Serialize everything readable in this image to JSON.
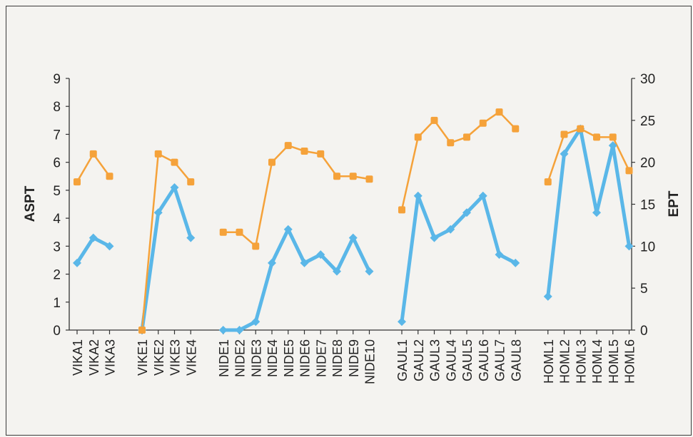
{
  "chart_data": {
    "type": "line",
    "ylabel_left": "ASPT",
    "ylabel_right": "EPT",
    "ylim_left": [
      0,
      9
    ],
    "ylim_right": [
      0,
      30
    ],
    "yticks_left": [
      "0",
      "1",
      "2",
      "3",
      "4",
      "5",
      "6",
      "7",
      "8",
      "9"
    ],
    "yticks_right": [
      "0",
      "5",
      "10",
      "15",
      "20",
      "25",
      "30"
    ],
    "grid": false,
    "colors": {
      "ASPT": "#f5a23a",
      "EPT": "#5ab7e8"
    },
    "groups": [
      {
        "categories": [
          "VIKA1",
          "VIKA2",
          "VIKA3"
        ],
        "ASPT": [
          5.3,
          6.3,
          5.5
        ],
        "EPT": [
          8,
          11,
          10
        ]
      },
      {
        "categories": [
          "VIKE1",
          "VIKE2",
          "VIKE3",
          "VIKE4"
        ],
        "ASPT": [
          0,
          6.3,
          6.0,
          5.3
        ],
        "EPT": [
          0,
          14,
          17,
          11
        ]
      },
      {
        "categories": [
          "NIDE1",
          "NIDE2",
          "NIDE3",
          "NIDE4",
          "NIDE5",
          "NIDE6",
          "NIDE7",
          "NIDE8",
          "NIDE9",
          "NIDE10"
        ],
        "ASPT": [
          3.5,
          3.5,
          3.0,
          6.0,
          6.6,
          6.4,
          6.3,
          5.5,
          5.5,
          5.4
        ],
        "EPT": [
          0,
          0,
          1,
          8,
          12,
          8,
          9,
          7,
          11,
          7
        ]
      },
      {
        "categories": [
          "GAUL1",
          "GAUL2",
          "GAUL3",
          "GAUL4",
          "GAUL5",
          "GAUL6",
          "GAUL7",
          "GAUL8"
        ],
        "ASPT": [
          4.3,
          6.9,
          7.5,
          6.7,
          6.9,
          7.4,
          7.8,
          7.2
        ],
        "EPT": [
          1,
          16,
          11,
          12,
          14,
          16,
          9,
          8
        ]
      },
      {
        "categories": [
          "HOML1",
          "HOML2",
          "HOML3",
          "HOML4",
          "HOML5",
          "HOML6"
        ],
        "ASPT": [
          5.3,
          7.0,
          7.2,
          6.9,
          6.9,
          5.7
        ],
        "EPT": [
          4,
          21,
          24,
          14,
          22,
          10
        ]
      }
    ]
  }
}
